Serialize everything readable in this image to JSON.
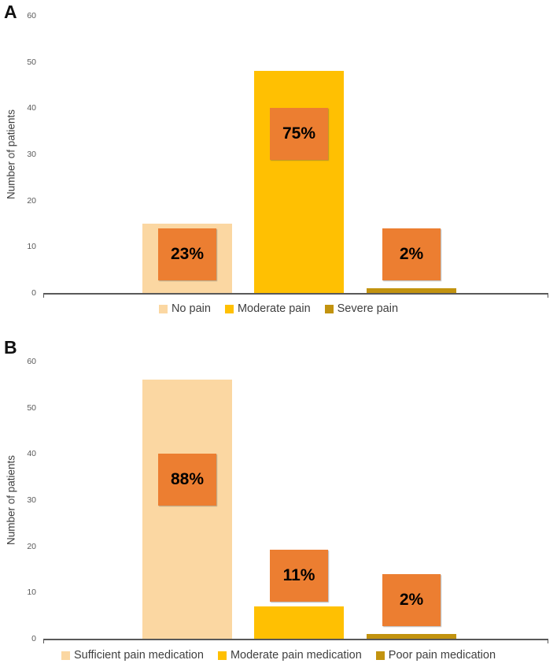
{
  "colors": {
    "series": {
      "light": "#FBD7A2",
      "gold": "#FFC002",
      "dark_gold": "#C2930F"
    },
    "label_box": "#EC7E31",
    "axis": "#595959",
    "tick_text": "#595959",
    "legend_text": "#3F3F3F",
    "percent_text": "#000000"
  },
  "chart_data": [
    {
      "type": "bar",
      "panel": "A",
      "title": "",
      "xlabel": "",
      "ylabel": "Number of patients",
      "ylim": [
        0,
        60
      ],
      "yticks": [
        0,
        10,
        20,
        30,
        40,
        50,
        60
      ],
      "grid": false,
      "legend_position": "bottom",
      "categories": [
        "No pain",
        "Moderate pain",
        "Severe pain"
      ],
      "values": [
        15,
        48,
        1
      ],
      "percent_labels": [
        "23%",
        "75%",
        "2%"
      ],
      "bar_colors": [
        "light",
        "gold",
        "dark_gold"
      ],
      "label_center_y": [
        8.4,
        34.5,
        8.4
      ]
    },
    {
      "type": "bar",
      "panel": "B",
      "title": "",
      "xlabel": "",
      "ylabel": "Number of patients",
      "ylim": [
        0,
        60
      ],
      "yticks": [
        0,
        10,
        20,
        30,
        40,
        50,
        60
      ],
      "grid": false,
      "legend_position": "bottom",
      "categories": [
        "Sufficient pain medication",
        "Moderate pain medication",
        "Poor pain medication"
      ],
      "values": [
        56,
        7,
        1
      ],
      "percent_labels": [
        "88%",
        "11%",
        "2%"
      ],
      "bar_colors": [
        "light",
        "gold",
        "dark_gold"
      ],
      "label_center_y": [
        34.5,
        13.6,
        8.3
      ]
    }
  ]
}
